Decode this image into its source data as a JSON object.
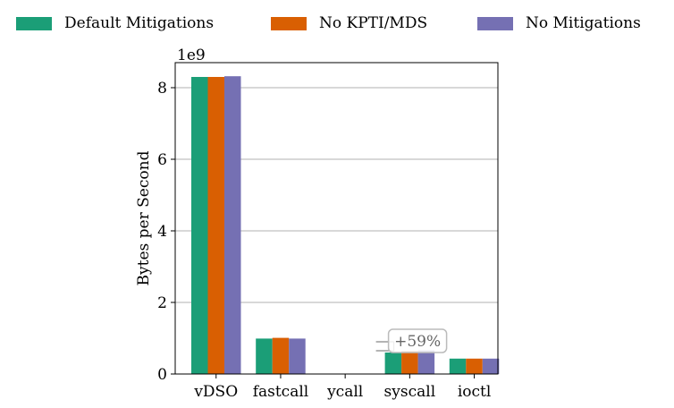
{
  "chart_data": {
    "type": "bar",
    "categories": [
      "vDSO",
      "fastcall",
      "ycall",
      "syscall",
      "ioctl"
    ],
    "series": [
      {
        "name": "Default Mitigations",
        "color": "#1b9e77",
        "values": [
          8300000000,
          990000000,
          0,
          600000000,
          430000000
        ]
      },
      {
        "name": "No KPTI/MDS",
        "color": "#d95f02",
        "values": [
          8300000000,
          1010000000,
          0,
          640000000,
          430000000
        ]
      },
      {
        "name": "No Mitigations",
        "color": "#7570b3",
        "values": [
          8320000000,
          990000000,
          0,
          660000000,
          430000000
        ]
      }
    ],
    "ylabel": "Bytes per Second",
    "xlabel": "",
    "scale_label": "1e9",
    "ylim": [
      0,
      8700000000
    ],
    "yticks": [
      0,
      2,
      4,
      6,
      8
    ],
    "grid": "y",
    "legend_position": "top",
    "annotation": {
      "text": "+59%",
      "category": "syscall"
    }
  }
}
